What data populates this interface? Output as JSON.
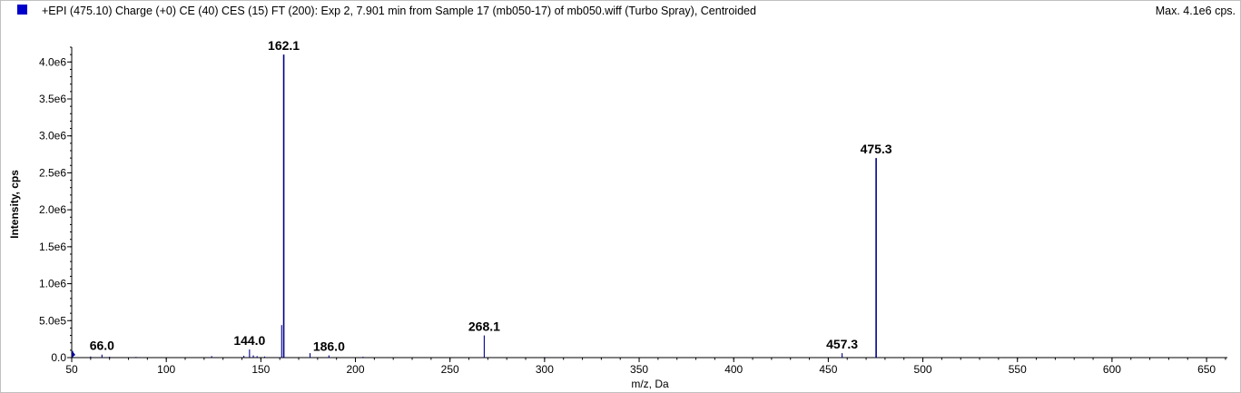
{
  "header": {
    "title": "+EPI (475.10) Charge (+0) CE (40) CES (15) FT (200): Exp 2, 7.901 min from Sample 17 (mb050-17) of mb050.wiff (Turbo Spray), Centroided",
    "max_label": "Max. 4.1e6 cps.",
    "legend_color": "#0000cc"
  },
  "colors": {
    "series": "#00008b",
    "axis": "#000000",
    "frame": "#c0c0c0"
  },
  "chart_data": {
    "type": "bar",
    "xlabel": "m/z, Da",
    "ylabel": "Intensity, cps",
    "xlim": [
      50,
      661
    ],
    "ylim": [
      0,
      4200000.0
    ],
    "x_ticks": [
      50,
      100,
      150,
      200,
      250,
      300,
      350,
      400,
      450,
      500,
      550,
      600,
      650
    ],
    "x_tick_labels": [
      "50",
      "100",
      "150",
      "200",
      "250",
      "300",
      "350",
      "400",
      "450",
      "500",
      "550",
      "600",
      "650"
    ],
    "y_ticks": [
      0,
      500000,
      1000000,
      1500000,
      2000000,
      2500000,
      3000000,
      3500000,
      4000000
    ],
    "y_tick_labels": [
      "0.0",
      "5.0e5",
      "1.0e6",
      "1.5e6",
      "2.0e6",
      "2.5e6",
      "3.0e6",
      "3.5e6",
      "4.0e6"
    ],
    "series": [
      {
        "peaks": [
          {
            "mz": 50.5,
            "intensity": 90000
          },
          {
            "mz": 60.0,
            "intensity": 15000
          },
          {
            "mz": 66.0,
            "intensity": 40000
          },
          {
            "mz": 70.0,
            "intensity": 12000
          },
          {
            "mz": 84.0,
            "intensity": 10000
          },
          {
            "mz": 124.0,
            "intensity": 20000
          },
          {
            "mz": 141.0,
            "intensity": 25000
          },
          {
            "mz": 144.0,
            "intensity": 110000
          },
          {
            "mz": 146.0,
            "intensity": 30000
          },
          {
            "mz": 148.0,
            "intensity": 20000
          },
          {
            "mz": 152.0,
            "intensity": 15000
          },
          {
            "mz": 161.0,
            "intensity": 440000
          },
          {
            "mz": 162.1,
            "intensity": 4100000
          },
          {
            "mz": 176.0,
            "intensity": 60000
          },
          {
            "mz": 186.0,
            "intensity": 30000
          },
          {
            "mz": 204.0,
            "intensity": 12000
          },
          {
            "mz": 268.1,
            "intensity": 300000
          },
          {
            "mz": 300.0,
            "intensity": 8000
          },
          {
            "mz": 457.3,
            "intensity": 60000
          },
          {
            "mz": 475.3,
            "intensity": 2700000
          }
        ]
      }
    ],
    "annotations": [
      {
        "mz": 66.0,
        "label": "66.0",
        "intensity": 40000
      },
      {
        "mz": 144.0,
        "label": "144.0",
        "intensity": 110000
      },
      {
        "mz": 162.1,
        "label": "162.1",
        "intensity": 4100000
      },
      {
        "mz": 186.0,
        "label": "186.0",
        "intensity": 30000
      },
      {
        "mz": 268.1,
        "label": "268.1",
        "intensity": 300000
      },
      {
        "mz": 457.3,
        "label": "457.3",
        "intensity": 60000
      },
      {
        "mz": 475.3,
        "label": "475.3",
        "intensity": 2700000
      }
    ]
  }
}
